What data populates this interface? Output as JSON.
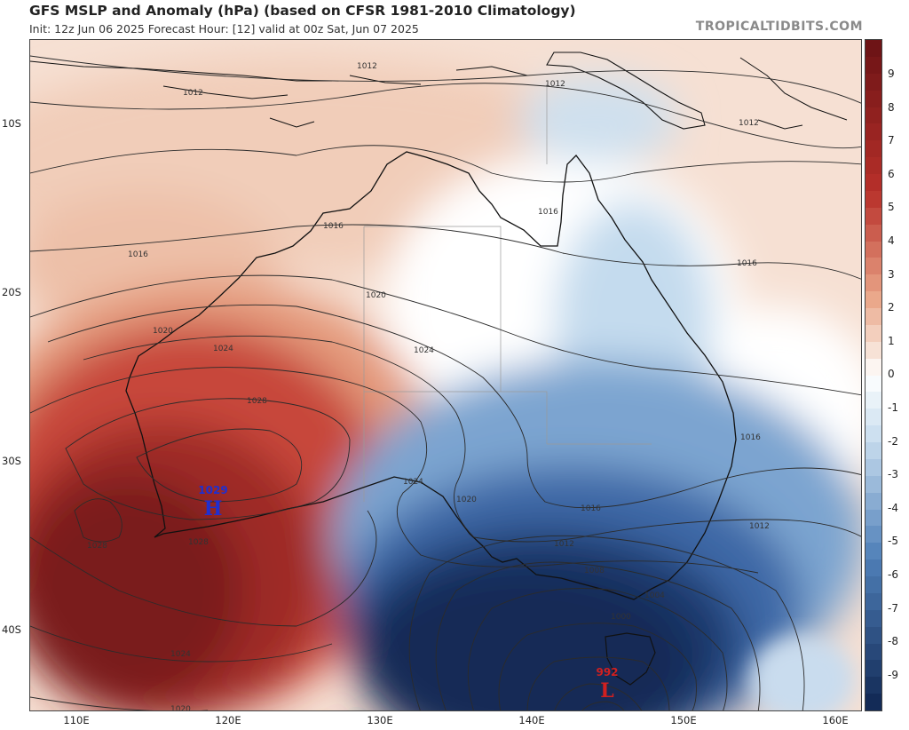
{
  "header": {
    "title": "GFS MSLP and Anomaly (hPa) (based on CFSR 1981-2010 Climatology)",
    "subtitle": "Init: 12z Jun 06 2025   Forecast Hour: [12]   valid at 00z Sat, Jun 07 2025",
    "brand": "TROPICALTIDBITS.COM"
  },
  "axes": {
    "lat_labels": [
      "10S",
      "20S",
      "30S",
      "40S"
    ],
    "lon_labels": [
      "110E",
      "120E",
      "130E",
      "140E",
      "150E",
      "160E"
    ]
  },
  "colorbar": {
    "labels": [
      "9",
      "8",
      "7",
      "6",
      "5",
      "4",
      "3",
      "2",
      "1",
      "0",
      "-1",
      "-2",
      "-3",
      "-4",
      "-5",
      "-6",
      "-7",
      "-8",
      "-9"
    ],
    "colors": {
      "deep_red": "#6e1416",
      "red": "#b8302a",
      "light_red": "#e9a487",
      "pale": "#f7e1d4",
      "white": "#ffffff",
      "pale_blue": "#c7dcee",
      "blue": "#4f7fb8",
      "deep_blue": "#132b57"
    }
  },
  "pressure_centers": [
    {
      "type": "H",
      "value": "1029",
      "color": "#1f2fd0"
    },
    {
      "type": "L",
      "value": "992",
      "color": "#d02020"
    }
  ],
  "isobar_labels": [
    "1012",
    "1012",
    "1012",
    "1012",
    "1016",
    "1016",
    "1016",
    "1016",
    "1016",
    "1020",
    "1020",
    "1020",
    "1024",
    "1024",
    "1024",
    "1024",
    "1028",
    "1028",
    "1028",
    "1020",
    "1016",
    "1012",
    "1008",
    "1004",
    "1000"
  ]
}
